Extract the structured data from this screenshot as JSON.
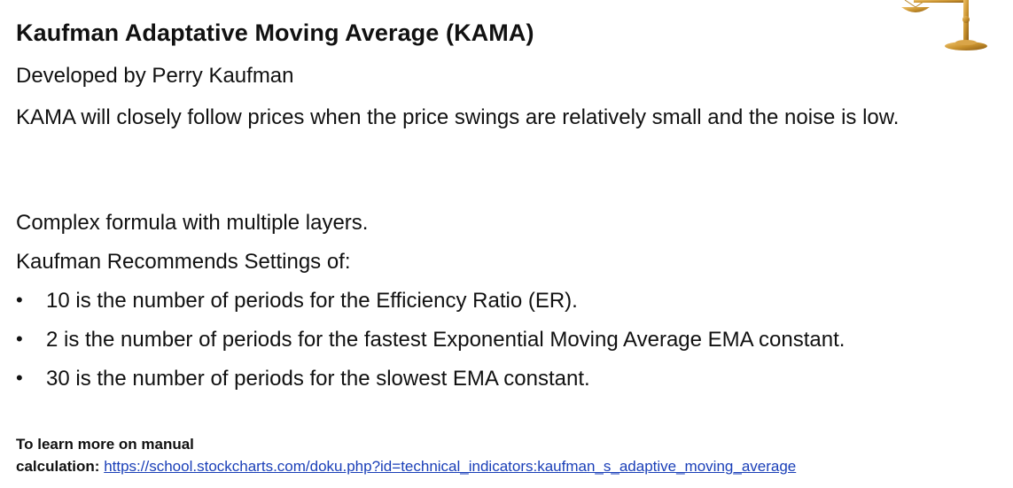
{
  "slide": {
    "title": "Kaufman Adaptative Moving Average (KAMA)",
    "subtitle": "Developed by Perry Kaufman",
    "description": "KAMA will closely follow prices when the price swings are relatively small and the noise is low.",
    "line_formula": "Complex formula with multiple layers.",
    "line_settings": "Kaufman Recommends Settings of:",
    "bullets": [
      "10 is the number of periods for the Efficiency Ratio (ER).",
      "2 is the number of periods for the fastest Exponential Moving Average EMA constant.",
      "30 is the number of periods for the slowest EMA constant."
    ],
    "bullet_glyph": "•",
    "learn_more_line1": "To learn more on manual",
    "learn_more_line2": "calculation:",
    "learn_more_link": "https://school.stockcharts.com/doku.php?id=technical_indicators:kaufman_s_adaptive_moving_average"
  },
  "icons": {
    "decoration": "balance-scale-icon"
  },
  "colors": {
    "link": "#1a3fb8",
    "scale_gold": "#c9922e"
  }
}
